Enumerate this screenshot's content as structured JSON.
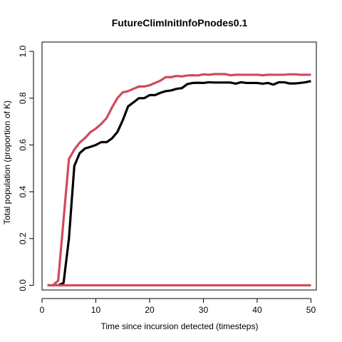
{
  "chart_data": {
    "type": "line",
    "title": "FutureClimInitInfoPnodes0.1",
    "xlabel": "Time since incursion detected (timesteps)",
    "ylabel": "Total population (proportion of K)",
    "xlim": [
      0,
      51
    ],
    "ylim": [
      -0.02,
      1.04
    ],
    "x_ticks": [
      0,
      10,
      20,
      30,
      40,
      50
    ],
    "y_ticks": [
      0.0,
      0.2,
      0.4,
      0.6,
      0.8,
      1.0
    ],
    "x_tick_labels": [
      "0",
      "10",
      "20",
      "30",
      "40",
      "50"
    ],
    "y_tick_labels": [
      "0.0",
      "0.2",
      "0.4",
      "0.6",
      "0.8",
      "1.0"
    ],
    "grid": false,
    "series": [
      {
        "color": "#000000",
        "x": [
          1,
          2,
          3,
          4,
          5,
          6,
          7,
          8,
          9,
          10,
          11,
          12,
          13,
          14,
          15,
          16,
          17,
          18,
          19,
          20,
          21,
          22,
          23,
          24,
          25,
          26,
          27,
          28,
          29,
          30,
          31,
          32,
          33,
          34,
          35,
          36,
          37,
          38,
          39,
          40,
          41,
          42,
          43,
          44,
          45,
          46,
          47,
          48,
          49,
          50
        ],
        "values": [
          0,
          0,
          0,
          0.01,
          0.2,
          0.51,
          0.565,
          0.585,
          0.592,
          0.6,
          0.612,
          0.612,
          0.628,
          0.655,
          0.705,
          0.765,
          0.782,
          0.8,
          0.8,
          0.813,
          0.813,
          0.823,
          0.83,
          0.833,
          0.84,
          0.843,
          0.86,
          0.865,
          0.866,
          0.865,
          0.868,
          0.867,
          0.867,
          0.867,
          0.867,
          0.862,
          0.868,
          0.865,
          0.865,
          0.865,
          0.862,
          0.865,
          0.858,
          0.868,
          0.868,
          0.863,
          0.863,
          0.865,
          0.868,
          0.873
        ]
      },
      {
        "color": "#d1495b",
        "x": [
          1,
          2,
          3,
          4,
          5,
          6,
          7,
          8,
          9,
          10,
          11,
          12,
          13,
          14,
          15,
          16,
          17,
          18,
          19,
          20,
          21,
          22,
          23,
          24,
          25,
          26,
          27,
          28,
          29,
          30,
          31,
          32,
          33,
          34,
          35,
          36,
          37,
          38,
          39,
          40,
          41,
          42,
          43,
          44,
          45,
          46,
          47,
          48,
          49,
          50
        ],
        "values": [
          0,
          0,
          0.02,
          0.28,
          0.54,
          0.58,
          0.61,
          0.63,
          0.655,
          0.67,
          0.69,
          0.715,
          0.76,
          0.8,
          0.825,
          0.83,
          0.84,
          0.85,
          0.85,
          0.855,
          0.865,
          0.875,
          0.89,
          0.89,
          0.895,
          0.893,
          0.897,
          0.898,
          0.897,
          0.902,
          0.9,
          0.903,
          0.903,
          0.903,
          0.898,
          0.9,
          0.9,
          0.9,
          0.9,
          0.9,
          0.898,
          0.9,
          0.9,
          0.9,
          0.9,
          0.902,
          0.902,
          0.9,
          0.9,
          0.9
        ]
      },
      {
        "color": "#d1495b",
        "x": [
          1,
          2,
          3,
          4,
          5,
          6,
          7,
          8,
          9,
          10,
          11,
          12,
          13,
          14,
          15,
          16,
          17,
          18,
          19,
          20,
          21,
          22,
          23,
          24,
          25,
          26,
          27,
          28,
          29,
          30,
          31,
          32,
          33,
          34,
          35,
          36,
          37,
          38,
          39,
          40,
          41,
          42,
          43,
          44,
          45,
          46,
          47,
          48,
          49,
          50
        ],
        "values": [
          0,
          0,
          0,
          0,
          0,
          0,
          0,
          0,
          0,
          0,
          0,
          0,
          0,
          0,
          0,
          0,
          0,
          0,
          0,
          0,
          0,
          0,
          0,
          0,
          0,
          0,
          0,
          0,
          0,
          0,
          0,
          0,
          0,
          0,
          0,
          0,
          0,
          0,
          0,
          0,
          0,
          0,
          0,
          0,
          0,
          0,
          0,
          0,
          0,
          0
        ]
      }
    ]
  }
}
